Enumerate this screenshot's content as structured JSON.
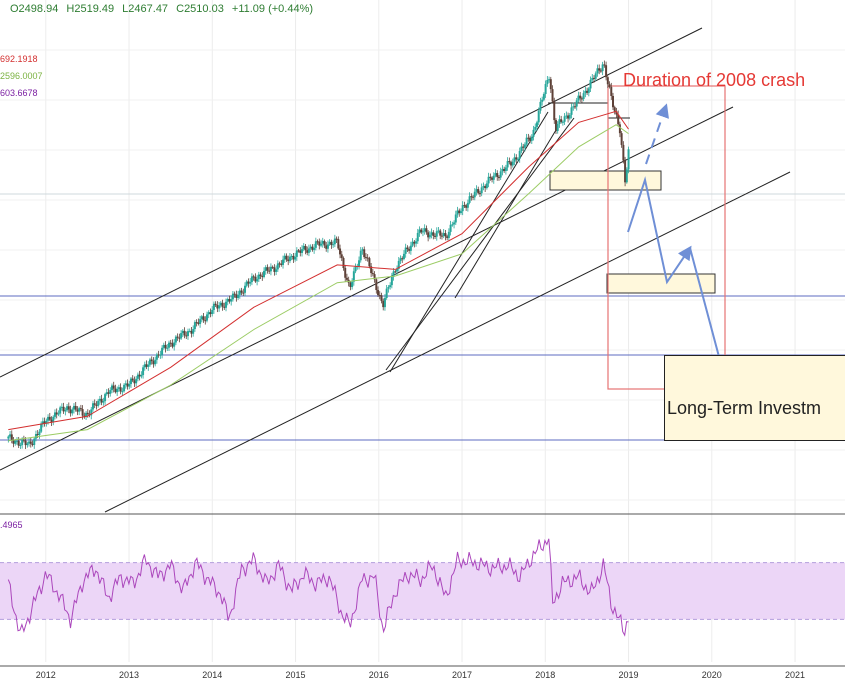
{
  "header": {
    "open": "O2498.94",
    "high": "H2519.49",
    "low": "L2467.47",
    "close": "C2510.03",
    "change": "+11.09 (+0.44%)"
  },
  "ma_labels": [
    {
      "text": "692.1918",
      "color": "#d32f2f"
    },
    {
      "text": "2596.0007",
      "color": "#7cb342"
    },
    {
      "text": "603.6678",
      "color": "#7b1fa2"
    }
  ],
  "rsi_label": ".4965",
  "annotations": {
    "title": "Duration of 2008 crash",
    "target_box": "Long-Term Investm"
  },
  "colors": {
    "up_candle": "#26a69a",
    "down_candle": "#5d4037",
    "ma_fast": "#d32f2f",
    "ma_slow": "#9ccc65",
    "rsi": "#ab47bc",
    "rsi_band": "#ecd6f7",
    "channel": "#222222",
    "support": "#5c6bc0",
    "arrows": "#6f8fd6",
    "crash_box": "#e57373",
    "zone_fill": "#fff8dc"
  },
  "chart_data": {
    "type": "candlestick",
    "x": [
      "2012",
      "2013",
      "2014",
      "2015",
      "2016",
      "2017",
      "2018",
      "2019",
      "2020",
      "2021"
    ],
    "price_series": {
      "points": [
        [
          2011.55,
          1230
        ],
        [
          2011.8,
          1200
        ],
        [
          2012.0,
          1310
        ],
        [
          2012.25,
          1370
        ],
        [
          2012.5,
          1340
        ],
        [
          2012.75,
          1440
        ],
        [
          2013.0,
          1470
        ],
        [
          2013.25,
          1570
        ],
        [
          2013.5,
          1660
        ],
        [
          2013.75,
          1720
        ],
        [
          2014.0,
          1810
        ],
        [
          2014.25,
          1860
        ],
        [
          2014.5,
          1950
        ],
        [
          2014.75,
          2000
        ],
        [
          2015.0,
          2060
        ],
        [
          2015.25,
          2100
        ],
        [
          2015.5,
          2110
        ],
        [
          2015.65,
          1900
        ],
        [
          2015.8,
          2090
        ],
        [
          2016.05,
          1830
        ],
        [
          2016.2,
          2000
        ],
        [
          2016.5,
          2160
        ],
        [
          2016.8,
          2140
        ],
        [
          2017.0,
          2270
        ],
        [
          2017.3,
          2380
        ],
        [
          2017.6,
          2470
        ],
        [
          2017.85,
          2600
        ],
        [
          2018.05,
          2870
        ],
        [
          2018.12,
          2620
        ],
        [
          2018.3,
          2700
        ],
        [
          2018.5,
          2800
        ],
        [
          2018.7,
          2920
        ],
        [
          2018.8,
          2740
        ],
        [
          2018.9,
          2620
        ],
        [
          2018.96,
          2380
        ],
        [
          2019.0,
          2510
        ]
      ]
    },
    "series": [
      {
        "name": "692.1918",
        "points": [
          [
            2011.55,
            1270
          ],
          [
            2012.5,
            1330
          ],
          [
            2013.5,
            1550
          ],
          [
            2014.5,
            1820
          ],
          [
            2015.5,
            2010
          ],
          [
            2016.2,
            1990
          ],
          [
            2017.0,
            2150
          ],
          [
            2017.8,
            2450
          ],
          [
            2018.4,
            2650
          ],
          [
            2018.85,
            2700
          ],
          [
            2019.0,
            2620
          ]
        ]
      },
      {
        "name": "2596.0007",
        "points": [
          [
            2011.55,
            1220
          ],
          [
            2012.5,
            1270
          ],
          [
            2013.5,
            1470
          ],
          [
            2014.5,
            1720
          ],
          [
            2015.5,
            1930
          ],
          [
            2016.2,
            1960
          ],
          [
            2017.0,
            2060
          ],
          [
            2017.8,
            2330
          ],
          [
            2018.4,
            2540
          ],
          [
            2018.85,
            2640
          ],
          [
            2019.0,
            2600
          ]
        ]
      }
    ],
    "rsi": {
      "band": [
        30,
        70
      ],
      "points": [
        [
          2011.55,
          55
        ],
        [
          2011.7,
          18
        ],
        [
          2011.85,
          40
        ],
        [
          2012.0,
          62
        ],
        [
          2012.15,
          48
        ],
        [
          2012.3,
          30
        ],
        [
          2012.45,
          58
        ],
        [
          2012.6,
          66
        ],
        [
          2012.75,
          45
        ],
        [
          2012.9,
          60
        ],
        [
          2013.05,
          55
        ],
        [
          2013.2,
          72
        ],
        [
          2013.35,
          60
        ],
        [
          2013.5,
          68
        ],
        [
          2013.65,
          50
        ],
        [
          2013.8,
          70
        ],
        [
          2013.95,
          58
        ],
        [
          2014.1,
          48
        ],
        [
          2014.2,
          30
        ],
        [
          2014.35,
          65
        ],
        [
          2014.5,
          72
        ],
        [
          2014.65,
          55
        ],
        [
          2014.8,
          68
        ],
        [
          2014.95,
          50
        ],
        [
          2015.1,
          62
        ],
        [
          2015.25,
          55
        ],
        [
          2015.4,
          60
        ],
        [
          2015.55,
          35
        ],
        [
          2015.65,
          25
        ],
        [
          2015.8,
          58
        ],
        [
          2015.95,
          60
        ],
        [
          2016.05,
          22
        ],
        [
          2016.2,
          50
        ],
        [
          2016.35,
          62
        ],
        [
          2016.5,
          58
        ],
        [
          2016.65,
          68
        ],
        [
          2016.8,
          45
        ],
        [
          2016.95,
          72
        ],
        [
          2017.15,
          70
        ],
        [
          2017.35,
          66
        ],
        [
          2017.55,
          68
        ],
        [
          2017.7,
          60
        ],
        [
          2017.85,
          75
        ],
        [
          2018.05,
          88
        ],
        [
          2018.08,
          40
        ],
        [
          2018.2,
          55
        ],
        [
          2018.4,
          60
        ],
        [
          2018.55,
          48
        ],
        [
          2018.7,
          68
        ],
        [
          2018.8,
          40
        ],
        [
          2018.88,
          30
        ],
        [
          2018.95,
          22
        ],
        [
          2019.0,
          32
        ]
      ]
    },
    "title": "",
    "xlabel": "",
    "ylabel": "",
    "xlim": [
      2011.45,
      2021.6
    ],
    "ylim": [
      900,
      3200
    ],
    "grid": true,
    "legend": "top-left"
  }
}
